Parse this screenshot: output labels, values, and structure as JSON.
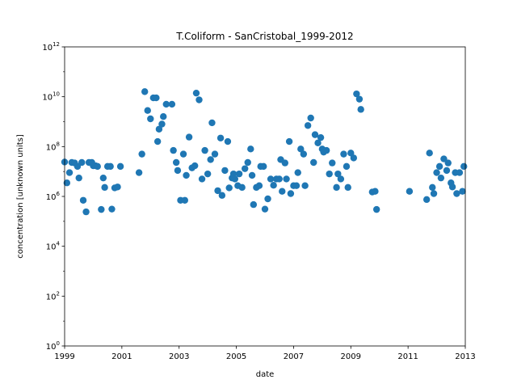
{
  "chart_data": {
    "type": "scatter",
    "title": "T.Coliform - SanCristobal_1999-2012",
    "xlabel": "date",
    "ylabel": "concentration [unknown units]",
    "y_scale": "log",
    "xlim": [
      1999,
      2013
    ],
    "ylim": [
      1,
      1000000000000
    ],
    "x_ticks": [
      1999,
      2001,
      2003,
      2005,
      2007,
      2009,
      2011,
      2013
    ],
    "y_ticks": [
      {
        "value": 1,
        "base": "10",
        "exp": "0"
      },
      {
        "value": 100,
        "base": "10",
        "exp": "2"
      },
      {
        "value": 10000,
        "base": "10",
        "exp": "4"
      },
      {
        "value": 1000000,
        "base": "10",
        "exp": "6"
      },
      {
        "value": 100000000,
        "base": "10",
        "exp": "8"
      },
      {
        "value": 10000000000,
        "base": "10",
        "exp": "10"
      },
      {
        "value": 1000000000000,
        "base": "10",
        "exp": "12"
      }
    ],
    "grid": false,
    "legend": "none",
    "marker_color": "#1f77b4",
    "points": [
      [
        1999.0,
        24000000.0
      ],
      [
        1999.08,
        3500000.0
      ],
      [
        1999.17,
        9000000.0
      ],
      [
        1999.25,
        23000000.0
      ],
      [
        1999.35,
        22000000.0
      ],
      [
        1999.45,
        16000000.0
      ],
      [
        1999.5,
        5500000.0
      ],
      [
        1999.6,
        23000000.0
      ],
      [
        1999.65,
        700000.0
      ],
      [
        1999.75,
        240000.0
      ],
      [
        1999.85,
        23000000.0
      ],
      [
        1999.95,
        23000000.0
      ],
      [
        2000.0,
        17000000.0
      ],
      [
        2000.08,
        17000000.0
      ],
      [
        2000.15,
        16000000.0
      ],
      [
        2000.28,
        300000.0
      ],
      [
        2000.35,
        5500000.0
      ],
      [
        2000.4,
        2300000.0
      ],
      [
        2000.5,
        16000000.0
      ],
      [
        2000.6,
        16000000.0
      ],
      [
        2000.65,
        310000.0
      ],
      [
        2000.75,
        2200000.0
      ],
      [
        2000.85,
        2400000.0
      ],
      [
        2000.95,
        16000000.0
      ],
      [
        2001.6,
        9000000.0
      ],
      [
        2001.7,
        50000000.0
      ],
      [
        2001.8,
        16000000000.0
      ],
      [
        2001.9,
        2800000000.0
      ],
      [
        2002.0,
        1300000000.0
      ],
      [
        2002.1,
        9000000000.0
      ],
      [
        2002.2,
        9000000000.0
      ],
      [
        2002.25,
        160000000.0
      ],
      [
        2002.3,
        500000000.0
      ],
      [
        2002.4,
        800000000.0
      ],
      [
        2002.45,
        1600000000.0
      ],
      [
        2002.55,
        5000000000.0
      ],
      [
        2002.75,
        5000000000.0
      ],
      [
        2002.8,
        70000000.0
      ],
      [
        2002.9,
        23000000.0
      ],
      [
        2002.95,
        11000000.0
      ],
      [
        2003.05,
        700000.0
      ],
      [
        2003.15,
        50000000.0
      ],
      [
        2003.2,
        700000.0
      ],
      [
        2003.25,
        7000000.0
      ],
      [
        2003.35,
        240000000.0
      ],
      [
        2003.45,
        14000000.0
      ],
      [
        2003.55,
        17000000.0
      ],
      [
        2003.6,
        14000000000.0
      ],
      [
        2003.7,
        7500000000.0
      ],
      [
        2003.8,
        5000000.0
      ],
      [
        2003.9,
        70000000.0
      ],
      [
        2004.0,
        8000000.0
      ],
      [
        2004.1,
        30000000.0
      ],
      [
        2004.15,
        900000000.0
      ],
      [
        2004.25,
        50000000.0
      ],
      [
        2004.35,
        1700000.0
      ],
      [
        2004.45,
        220000000.0
      ],
      [
        2004.5,
        1100000.0
      ],
      [
        2004.6,
        11000000.0
      ],
      [
        2004.7,
        160000000.0
      ],
      [
        2004.75,
        2200000.0
      ],
      [
        2004.85,
        5500000.0
      ],
      [
        2004.9,
        8000000.0
      ],
      [
        2004.95,
        5000000.0
      ],
      [
        2005.05,
        2700000.0
      ],
      [
        2005.1,
        8000000.0
      ],
      [
        2005.2,
        2300000.0
      ],
      [
        2005.3,
        13000000.0
      ],
      [
        2005.4,
        23000000.0
      ],
      [
        2005.5,
        80000000.0
      ],
      [
        2005.55,
        7000000.0
      ],
      [
        2005.6,
        470000.0
      ],
      [
        2005.7,
        2300000.0
      ],
      [
        2005.8,
        2700000.0
      ],
      [
        2005.85,
        16000000.0
      ],
      [
        2005.95,
        16000000.0
      ],
      [
        2006.0,
        310000.0
      ],
      [
        2006.1,
        800000.0
      ],
      [
        2006.2,
        5000000.0
      ],
      [
        2006.3,
        2800000.0
      ],
      [
        2006.4,
        5000000.0
      ],
      [
        2006.5,
        5000000.0
      ],
      [
        2006.55,
        30000000.0
      ],
      [
        2006.6,
        1600000.0
      ],
      [
        2006.7,
        22000000.0
      ],
      [
        2006.75,
        5000000.0
      ],
      [
        2006.85,
        160000000.0
      ],
      [
        2006.9,
        1300000.0
      ],
      [
        2007.0,
        2700000.0
      ],
      [
        2007.1,
        2700000.0
      ],
      [
        2007.15,
        9000000.0
      ],
      [
        2007.25,
        80000000.0
      ],
      [
        2007.35,
        50000000.0
      ],
      [
        2007.4,
        2700000.0
      ],
      [
        2007.5,
        700000000.0
      ],
      [
        2007.6,
        1400000000.0
      ],
      [
        2007.7,
        23000000.0
      ],
      [
        2007.75,
        300000000.0
      ],
      [
        2007.85,
        140000000.0
      ],
      [
        2007.95,
        230000000.0
      ],
      [
        2008.0,
        80000000.0
      ],
      [
        2008.05,
        60000000.0
      ],
      [
        2008.15,
        70000000.0
      ],
      [
        2008.25,
        8000000.0
      ],
      [
        2008.35,
        22000000.0
      ],
      [
        2008.5,
        2300000.0
      ],
      [
        2008.55,
        8000000.0
      ],
      [
        2008.65,
        5000000.0
      ],
      [
        2008.75,
        50000000.0
      ],
      [
        2008.85,
        16000000.0
      ],
      [
        2008.9,
        2300000.0
      ],
      [
        2009.0,
        55000000.0
      ],
      [
        2009.1,
        35000000.0
      ],
      [
        2009.2,
        13000000000.0
      ],
      [
        2009.3,
        8000000000.0
      ],
      [
        2009.35,
        3100000000.0
      ],
      [
        2009.75,
        1500000.0
      ],
      [
        2009.85,
        1600000.0
      ],
      [
        2009.9,
        300000.0
      ],
      [
        2011.05,
        1600000.0
      ],
      [
        2011.65,
        750000.0
      ],
      [
        2011.75,
        55000000.0
      ],
      [
        2011.85,
        2300000.0
      ],
      [
        2011.9,
        1300000.0
      ],
      [
        2012.0,
        9000000.0
      ],
      [
        2012.1,
        16000000.0
      ],
      [
        2012.15,
        5500000.0
      ],
      [
        2012.25,
        32000000.0
      ],
      [
        2012.35,
        11000000.0
      ],
      [
        2012.4,
        22000000.0
      ],
      [
        2012.5,
        3500000.0
      ],
      [
        2012.55,
        2400000.0
      ],
      [
        2012.65,
        9000000.0
      ],
      [
        2012.7,
        1300000.0
      ],
      [
        2012.8,
        9000000.0
      ],
      [
        2012.9,
        1600000.0
      ],
      [
        2012.95,
        16000000.0
      ]
    ]
  }
}
